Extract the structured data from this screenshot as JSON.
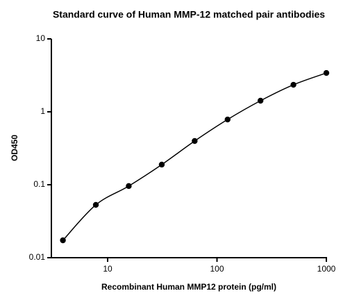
{
  "chart_data": {
    "type": "scatter",
    "title": "Standard curve of Human MMP-12 matched pair antibodies",
    "x_label": "Recombinant Human MMP12 protein (pg/ml)",
    "y_label": "OD450",
    "x": [
      3.9,
      7.8,
      15.6,
      31.25,
      62.5,
      125,
      250,
      500,
      1000
    ],
    "values": [
      0.0173,
      0.053,
      0.096,
      0.189,
      0.398,
      0.785,
      1.42,
      2.35,
      3.41
    ],
    "color": "#000000",
    "xscale": "log",
    "yscale": "log",
    "fit_line": true,
    "xlim": [
      3.06,
      1000
    ],
    "ylim": [
      0.01,
      10
    ],
    "xticks": [
      10,
      100,
      1000
    ],
    "yticks": [
      0.01,
      0.1,
      1,
      10
    ]
  }
}
